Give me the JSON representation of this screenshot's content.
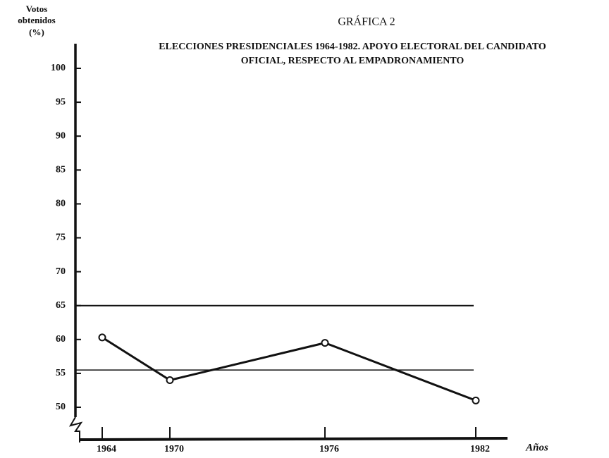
{
  "chart_data": {
    "type": "line",
    "label": "GRÁFICA 2",
    "title": [
      "ELECCIONES PRESIDENCIALES 1964-1982. APOYO ELECTORAL DEL CANDIDATO",
      "OFICIAL, RESPECTO AL EMPADRONAMIENTO"
    ],
    "y_label": [
      "Votos",
      "obtenidos",
      "(%)"
    ],
    "x_label": "Años",
    "categories": [
      "1964",
      "1970",
      "1976",
      "1982"
    ],
    "series": [
      {
        "color": "#111111",
        "values": [
          60.3,
          54.0,
          59.5,
          51.0
        ]
      }
    ],
    "reference_lines": [
      65,
      55.5
    ],
    "ylim": [
      50,
      100
    ],
    "yticks": [
      50,
      55,
      60,
      65,
      70,
      75,
      80,
      85,
      90,
      95,
      100
    ]
  }
}
